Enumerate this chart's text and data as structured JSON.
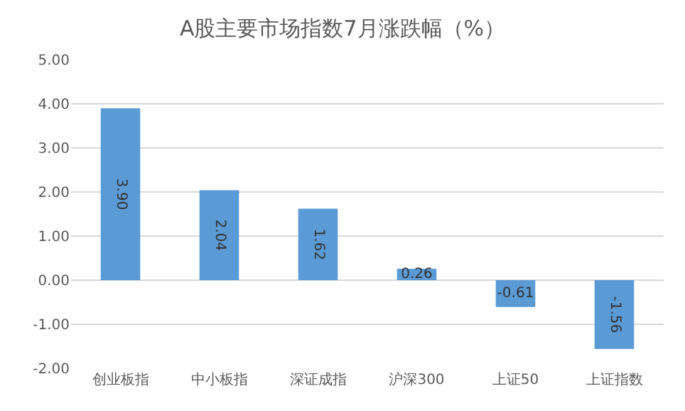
{
  "chart_data": {
    "type": "bar",
    "title": "A股主要市场指数7月涨跌幅（%）",
    "categories": [
      "创业板指",
      "中小板指",
      "深证成指",
      "沪深300",
      "上证50",
      "上证指数"
    ],
    "values": [
      3.9,
      2.04,
      1.62,
      0.26,
      -0.61,
      -1.56
    ],
    "value_labels": [
      "3.90",
      "2.04",
      "1.62",
      "0.26",
      "-0.61",
      "-1.56"
    ],
    "color": "#5b9bd5",
    "ylim": [
      -2,
      5
    ],
    "yticks": [
      {
        "value": 5,
        "label": "5.00"
      },
      {
        "value": 4,
        "label": "4.00"
      },
      {
        "value": 3,
        "label": "3.00"
      },
      {
        "value": 2,
        "label": "2.00"
      },
      {
        "value": 1,
        "label": "1.00"
      },
      {
        "value": 0,
        "label": "0.00"
      },
      {
        "value": -1,
        "label": "-1.00"
      },
      {
        "value": -2,
        "label": "-2.00"
      }
    ],
    "grid": "y",
    "legend": false
  }
}
